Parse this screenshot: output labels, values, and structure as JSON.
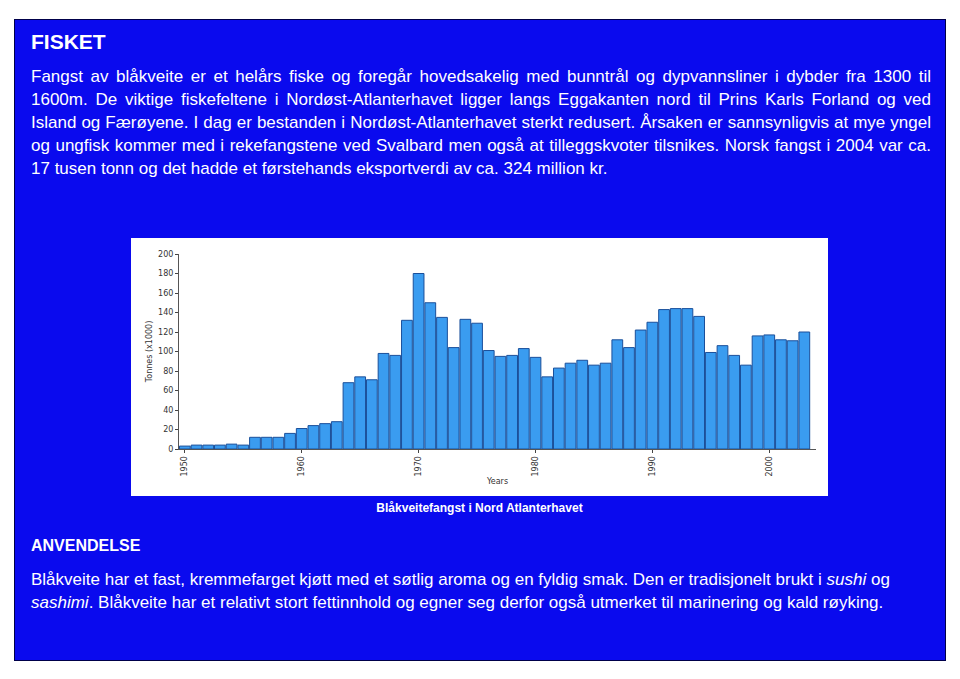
{
  "header": {
    "title": "FISKET"
  },
  "paragraphs": [
    [
      {
        "text": "Fangst av blåkveite er et helårs fiske og foregår hovedsakelig med bunntrål og dypvannsliner i dybder fra 1300 til 1600m. De viktige fiskefeltene i Nordøst-Atlanterhavet ligger langs Eggakanten nord til Prins Karls Forland og ved Island og Færøyene. I dag er bestanden i Nordøst-Atlanterhavet sterkt redusert. Årsaken er sannsynligvis at mye yngel og ungfisk kommer med i rekefangstene ved Svalbard men også at tilleggskvoter tilsnikes. Norsk fangst i 2004 var ca. 17 tusen tonn og det hadde et førstehands eksportverdi av ca. 324 million kr."
      }
    ]
  ],
  "section2": {
    "title": "ANVENDELSE",
    "paragraph": [
      {
        "text": "Blåkveite har et fast, kremmefarget kjøtt med et søtlig aroma og en fyldig smak. Den er tradisjonelt brukt i "
      },
      {
        "text": "sushi",
        "italic": true
      },
      {
        "text": " og "
      },
      {
        "text": "sashimi",
        "italic": true
      },
      {
        "text": ". Blåkveite har et relativt stort fettinnhold og egner seg derfor også utmerket til marinering og kald røyking."
      }
    ]
  },
  "chart_data": {
    "type": "bar",
    "title": "Blåkveitefangst i Nord Atlanterhavet",
    "xlabel": "Years",
    "ylabel": "Tonnes (x1000)",
    "x": [
      1950,
      1951,
      1952,
      1953,
      1954,
      1955,
      1956,
      1957,
      1958,
      1959,
      1960,
      1961,
      1962,
      1963,
      1964,
      1965,
      1966,
      1967,
      1968,
      1969,
      1970,
      1971,
      1972,
      1973,
      1974,
      1975,
      1976,
      1977,
      1978,
      1979,
      1980,
      1981,
      1982,
      1983,
      1984,
      1985,
      1986,
      1987,
      1988,
      1989,
      1990,
      1991,
      1992,
      1993,
      1994,
      1995,
      1996,
      1997,
      1998,
      1999,
      2000,
      2001,
      2002,
      2003
    ],
    "values": [
      3,
      4,
      4,
      4,
      5,
      4,
      12,
      12,
      12,
      16,
      21,
      24,
      26,
      28,
      68,
      74,
      71,
      98,
      96,
      132,
      180,
      150,
      135,
      104,
      133,
      129,
      101,
      95,
      96,
      103,
      94,
      74,
      83,
      88,
      91,
      86,
      88,
      112,
      104,
      122,
      130,
      143,
      144,
      144,
      136,
      99,
      106,
      96,
      86,
      116,
      117,
      112,
      111,
      120
    ],
    "color": "#3a9cf0",
    "xlim": [
      1949.5,
      2004
    ],
    "xticks": [
      1950,
      1960,
      1970,
      1980,
      1990,
      2000
    ],
    "ylim": [
      0,
      200
    ],
    "yticks": [
      0,
      20,
      40,
      60,
      80,
      100,
      120,
      140,
      160,
      180,
      200
    ],
    "grid": false
  }
}
